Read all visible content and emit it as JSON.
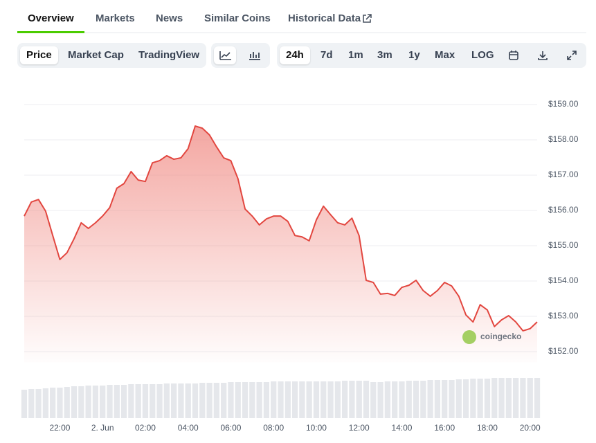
{
  "tabs": [
    "Overview",
    "Markets",
    "News",
    "Similar Coins",
    "Historical Data"
  ],
  "chart_modes": [
    "Price",
    "Market Cap",
    "TradingView"
  ],
  "ranges": [
    "24h",
    "7d",
    "1m",
    "3m",
    "1y",
    "Max",
    "LOG"
  ],
  "chart_data": {
    "type": "area",
    "watermark": "coingecko",
    "color": "#e2463f",
    "grid": true,
    "categories": [
      null,
      null,
      null,
      null,
      null,
      "22:00",
      null,
      null,
      null,
      null,
      null,
      "2. Jun",
      null,
      null,
      null,
      null,
      null,
      "02:00",
      null,
      null,
      null,
      null,
      null,
      "04:00",
      null,
      null,
      null,
      null,
      null,
      "06:00",
      null,
      null,
      null,
      null,
      null,
      "08:00",
      null,
      null,
      null,
      null,
      null,
      "10:00",
      null,
      null,
      null,
      null,
      null,
      "12:00",
      null,
      null,
      null,
      null,
      null,
      "14:00",
      null,
      null,
      null,
      null,
      null,
      "16:00",
      null,
      null,
      null,
      null,
      null,
      "18:00",
      null,
      null,
      null,
      null,
      null,
      "20:00",
      null
    ],
    "values": [
      155.84,
      156.24,
      156.31,
      155.98,
      155.29,
      154.61,
      154.8,
      155.2,
      155.65,
      155.49,
      155.65,
      155.84,
      156.08,
      156.63,
      156.76,
      157.1,
      156.86,
      156.82,
      157.35,
      157.41,
      157.55,
      157.45,
      157.49,
      157.75,
      158.39,
      158.33,
      158.14,
      157.8,
      157.49,
      157.41,
      156.9,
      156.04,
      155.84,
      155.59,
      155.76,
      155.84,
      155.84,
      155.69,
      155.29,
      155.25,
      155.14,
      155.73,
      156.12,
      155.88,
      155.65,
      155.59,
      155.78,
      155.29,
      154.02,
      153.96,
      153.63,
      153.65,
      153.59,
      153.82,
      153.88,
      154.02,
      153.73,
      153.57,
      153.73,
      153.96,
      153.86,
      153.57,
      153.04,
      152.84,
      153.33,
      153.18,
      152.71,
      152.9,
      153.02,
      152.84,
      152.59,
      152.65,
      152.84
    ],
    "volume": [
      41,
      42,
      42,
      43,
      44,
      44,
      45,
      46,
      46,
      47,
      47,
      47,
      48,
      48,
      48,
      49,
      49,
      49,
      49,
      49,
      50,
      50,
      50,
      50,
      50,
      51,
      51,
      51,
      51,
      52,
      52,
      52,
      52,
      52,
      52,
      53,
      53,
      53,
      53,
      53,
      53,
      53,
      53,
      53,
      53,
      54,
      54,
      54,
      54,
      52,
      52,
      53,
      53,
      53,
      54,
      54,
      54,
      55,
      55,
      55,
      55,
      56,
      56,
      57,
      57,
      57,
      58,
      58,
      58,
      58,
      58,
      58,
      58
    ],
    "ylim": [
      151.7,
      159.4
    ],
    "yticks": [
      {
        "value": 152,
        "label": "$152.00"
      },
      {
        "value": 153,
        "label": "$153.00"
      },
      {
        "value": 154,
        "label": "$154.00"
      },
      {
        "value": 155,
        "label": "$155.00"
      },
      {
        "value": 156,
        "label": "$156.00"
      },
      {
        "value": 157,
        "label": "$157.00"
      },
      {
        "value": 158,
        "label": "$158.00"
      },
      {
        "value": 159,
        "label": "$159.00"
      }
    ]
  }
}
